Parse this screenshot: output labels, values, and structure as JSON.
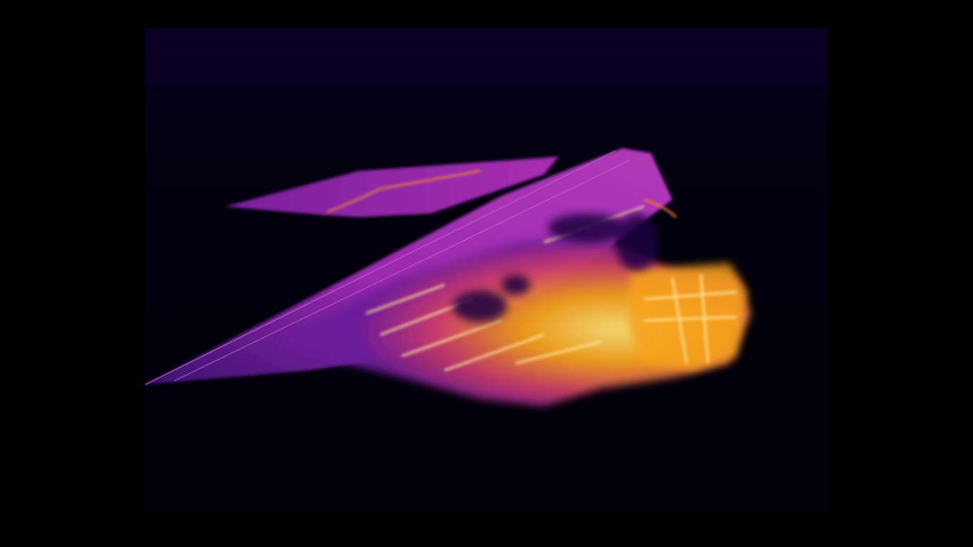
{
  "scene": {
    "subject": "",
    "palette": {
      "background": "#000000",
      "cold": "#0a0326",
      "cool": "#4b0f8a",
      "mid": "#9b2ab0",
      "warm": "#e0503a",
      "hot": "#f7a21b",
      "hottest": "#fff3a0"
    }
  }
}
